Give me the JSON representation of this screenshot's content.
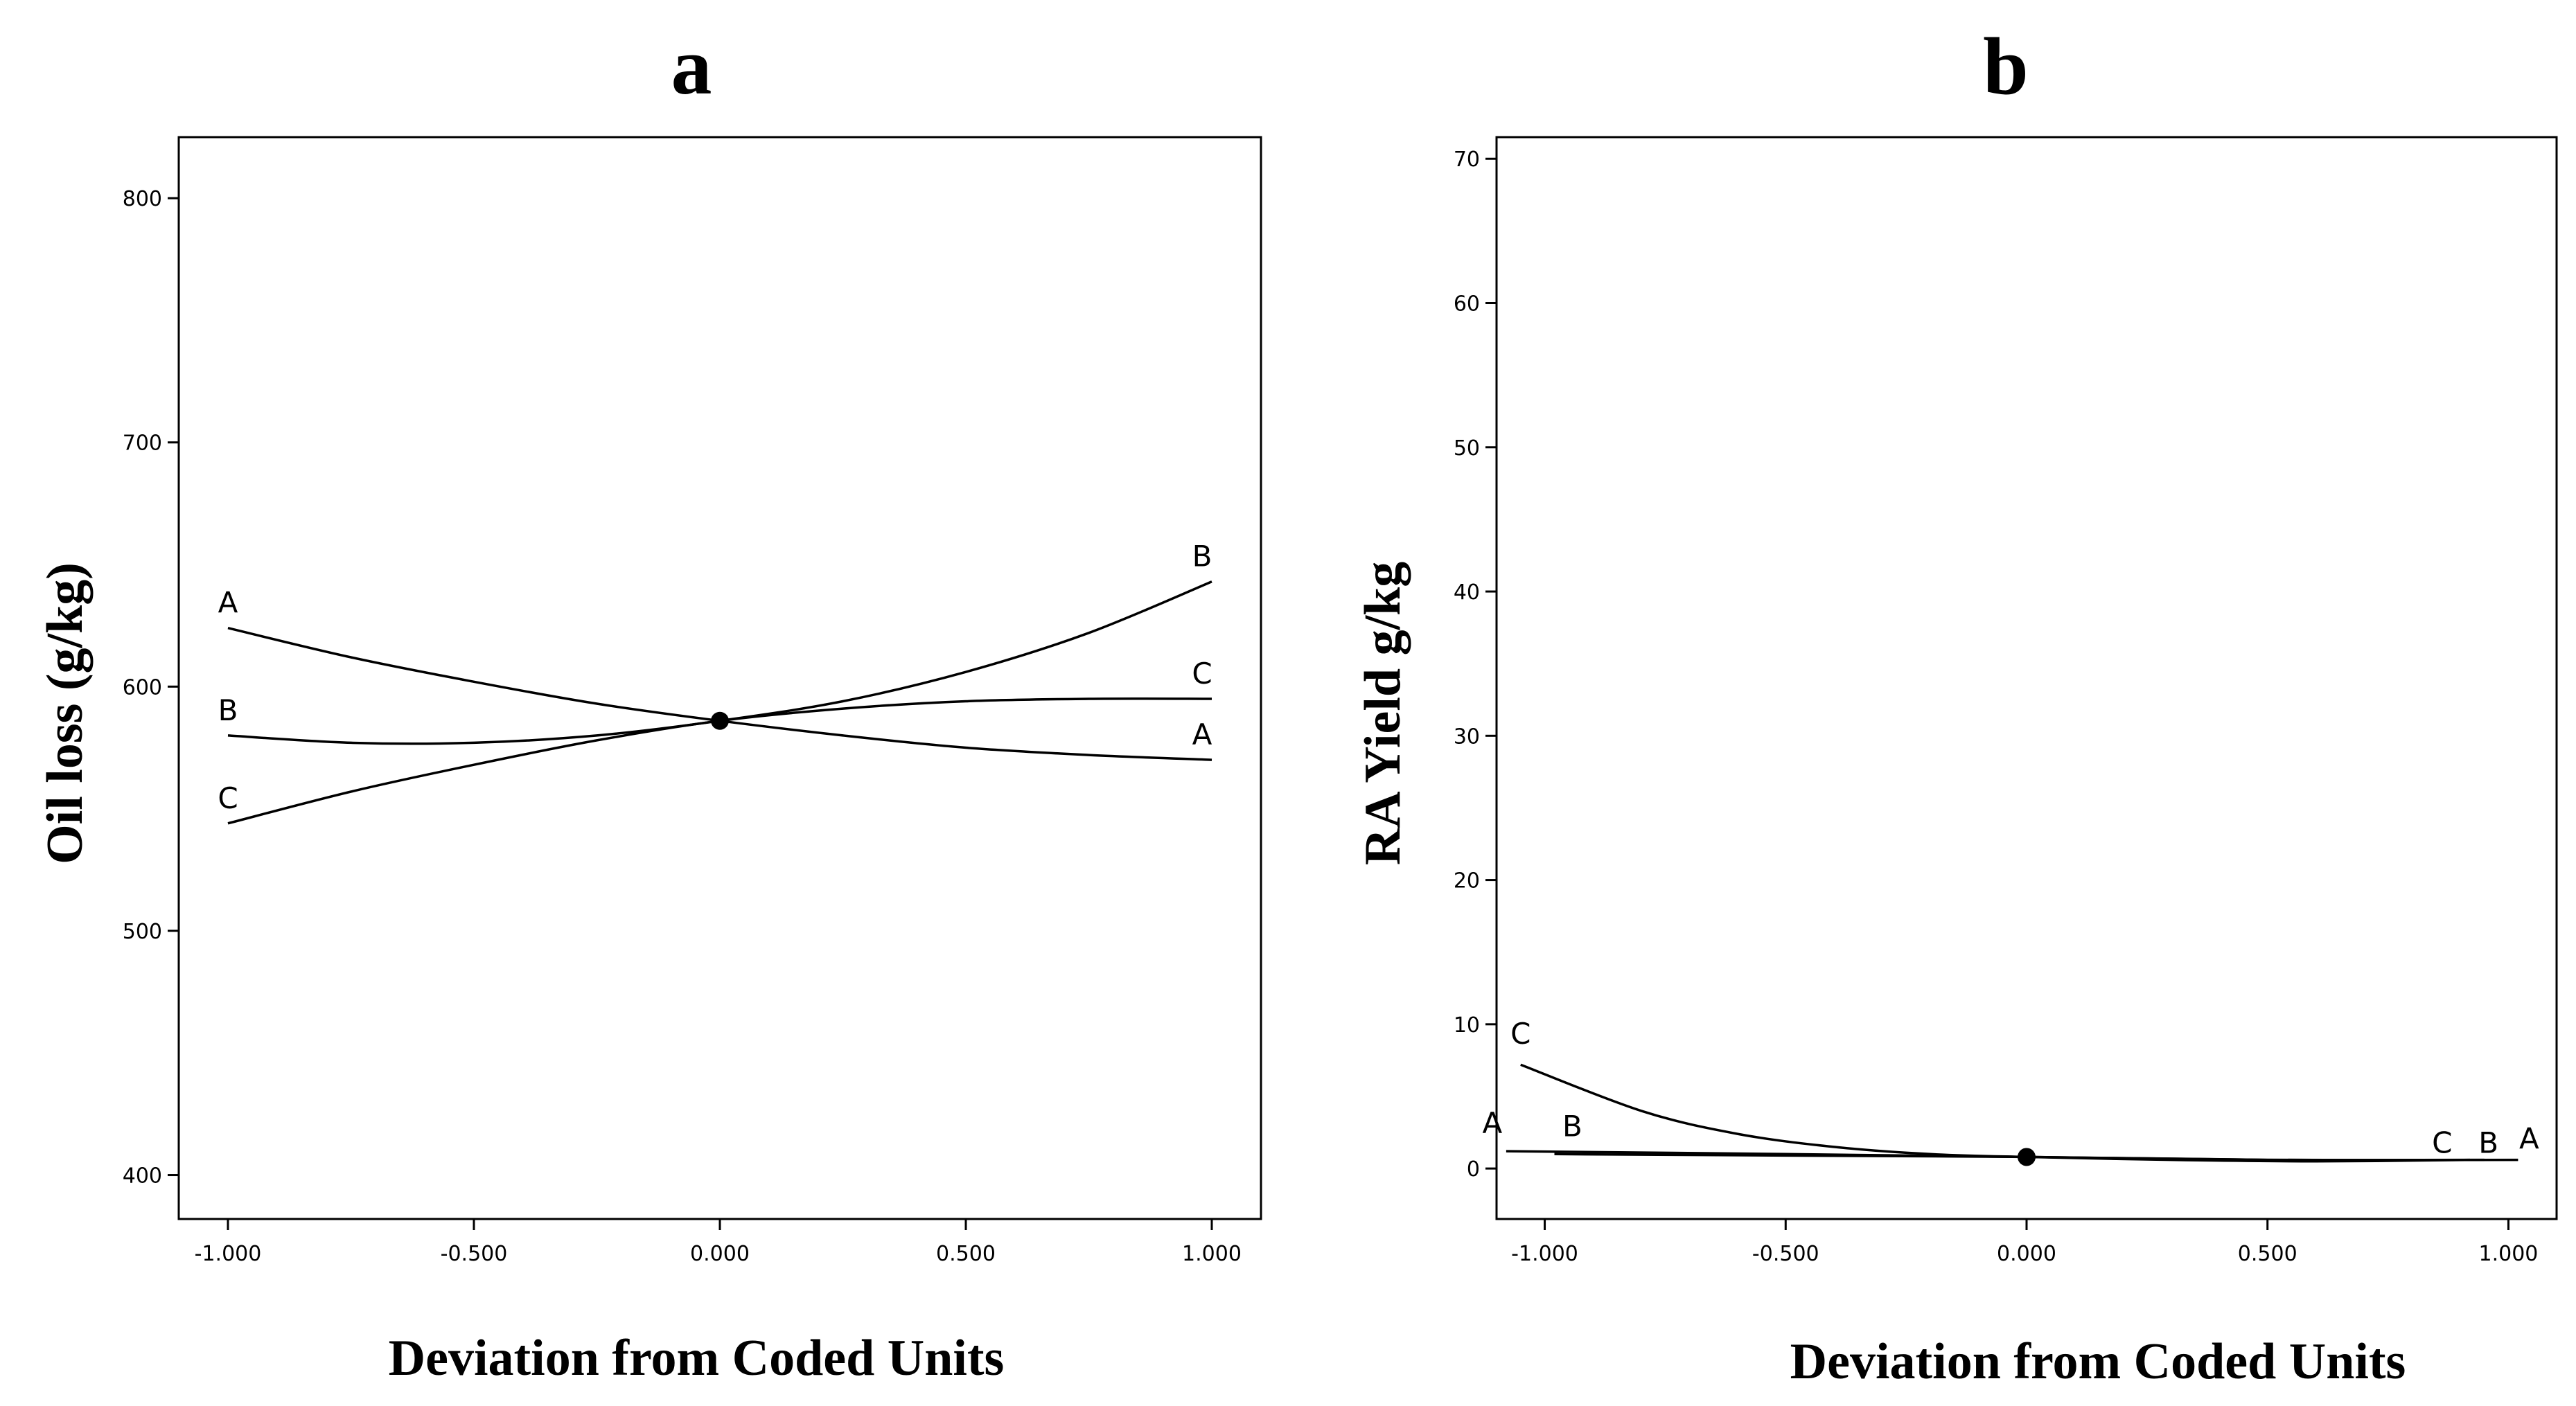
{
  "chart_data": [
    {
      "type": "line",
      "panel_label": "a",
      "title": "a",
      "xlabel": "Deviation from Coded Units",
      "ylabel": "Oil loss (g/kg)",
      "xlim": [
        -1.1,
        1.1
      ],
      "ylim": [
        382,
        825
      ],
      "x_ticks": [
        -1.0,
        -0.5,
        0.0,
        0.5,
        1.0
      ],
      "x_tick_labels": [
        "-1.000",
        "-0.500",
        "0.000",
        "0.500",
        "1.000"
      ],
      "y_ticks": [
        400,
        500,
        600,
        700,
        800
      ],
      "y_tick_labels": [
        "400",
        "500",
        "600",
        "700",
        "800"
      ],
      "x": [
        -1.0,
        -0.75,
        -0.5,
        -0.25,
        0.0,
        0.25,
        0.5,
        0.75,
        1.0
      ],
      "series": [
        {
          "name": "A",
          "start_label": "A",
          "end_label": "A",
          "values": [
            624,
            612,
            602,
            593,
            586,
            580,
            575,
            572,
            570
          ]
        },
        {
          "name": "B",
          "start_label": "B",
          "end_label": "B",
          "values": [
            580,
            577,
            577,
            580,
            586,
            594,
            606,
            622,
            643
          ]
        },
        {
          "name": "C",
          "start_label": "C",
          "end_label": "C",
          "values": [
            544,
            557,
            568,
            578,
            586,
            591,
            594,
            595,
            595
          ]
        }
      ],
      "reference_point": {
        "x": 0.0,
        "y": 586
      }
    },
    {
      "type": "line",
      "panel_label": "b",
      "title": "b",
      "xlabel": "Deviation from Coded Units",
      "ylabel": "RA Yield g/kg",
      "xlim": [
        -1.1,
        1.1
      ],
      "ylim": [
        -3.5,
        71.5
      ],
      "x_ticks": [
        -1.0,
        -0.5,
        0.0,
        0.5,
        1.0
      ],
      "x_tick_labels": [
        "-1.000",
        "-0.500",
        "0.000",
        "0.500",
        "1.000"
      ],
      "y_ticks": [
        0,
        10,
        20,
        30,
        40,
        50,
        60,
        70
      ],
      "y_tick_labels": [
        "0",
        "10",
        "20",
        "30",
        "40",
        "50",
        "60",
        "70"
      ],
      "series": [
        {
          "name": "C",
          "start_label": "C",
          "end_label": "C",
          "x": [
            -1.05,
            -0.8,
            -0.6,
            -0.4,
            -0.2,
            0.0,
            0.3,
            0.6,
            0.92
          ],
          "values": [
            7.2,
            4.0,
            2.4,
            1.5,
            1.0,
            0.8,
            0.6,
            0.5,
            0.6
          ]
        },
        {
          "name": "B",
          "start_label": "B",
          "end_label": "B",
          "x": [
            -0.98,
            -0.5,
            0.0,
            0.5,
            0.95
          ],
          "values": [
            1.0,
            0.9,
            0.8,
            0.6,
            0.6
          ]
        },
        {
          "name": "A",
          "start_label": "A",
          "end_label": "A",
          "x": [
            -1.08,
            -0.5,
            0.0,
            0.5,
            1.02
          ],
          "values": [
            1.2,
            1.0,
            0.8,
            0.6,
            0.6
          ]
        }
      ],
      "reference_point": {
        "x": 0.0,
        "y": 0.8
      }
    }
  ]
}
